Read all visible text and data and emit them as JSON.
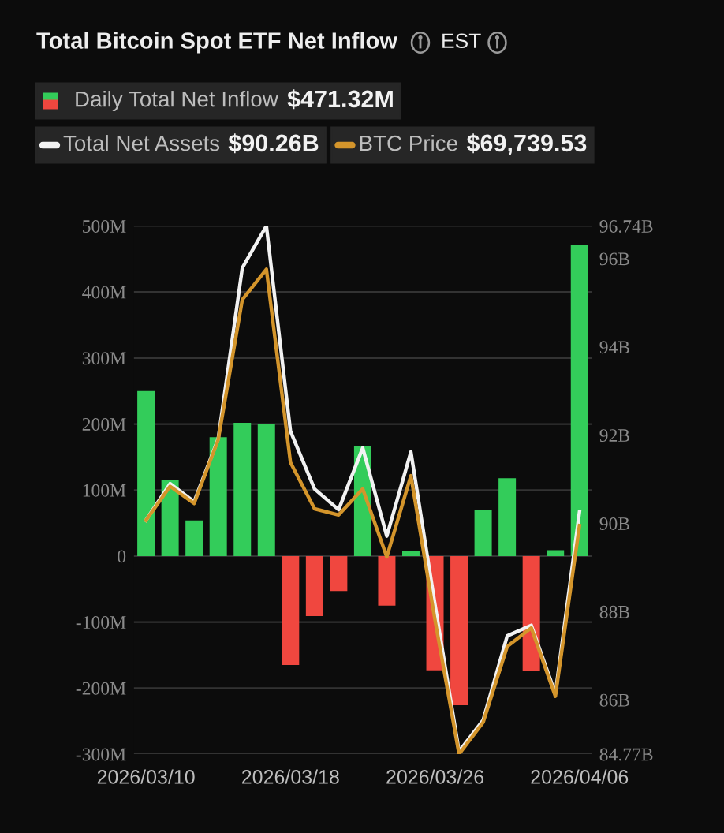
{
  "chart_data": {
    "type": "bar",
    "title": "Total Bitcoin Spot ETF Net Inflow",
    "categories": [
      "2026/03/10",
      null,
      null,
      null,
      null,
      null,
      "2026/03/18",
      null,
      null,
      null,
      null,
      null,
      "2026/03/26",
      null,
      null,
      null,
      null,
      null,
      "2026/04/06"
    ],
    "series": [
      {
        "name": "Daily Total Net Inflow",
        "colors": [
          "#33cc5a",
          "#33cc5a",
          "#33cc5a",
          "#33cc5a",
          "#33cc5a",
          "#33cc5a",
          "#f0473f",
          "#f0473f",
          "#f0473f",
          "#33cc5a",
          "#f0473f",
          "#33cc5a",
          "#f0473f",
          "#f0473f",
          "#33cc5a",
          "#33cc5a",
          "#f0473f",
          "#33cc5a",
          "#33cc5a"
        ],
        "values": [
          250,
          115,
          54,
          180,
          202,
          200,
          -165,
          -91,
          -53,
          167,
          -75,
          7,
          -173,
          -226,
          70,
          118,
          -174,
          9,
          471.32
        ]
      },
      {
        "name": "Total Net Assets",
        "type": "line",
        "axis": "y2",
        "color": "#f2f2f2",
        "values": [
          90.07,
          90.9,
          90.49,
          91.92,
          95.79,
          96.74,
          92.09,
          90.78,
          90.31,
          91.71,
          89.71,
          91.62,
          88.16,
          84.83,
          85.54,
          87.45,
          87.69,
          86.14,
          90.26
        ]
      },
      {
        "name": "BTC Price",
        "type": "line",
        "axis": "y2",
        "color": "#d4952b",
        "values": [
          90.07,
          90.84,
          90.45,
          91.9,
          95.07,
          95.76,
          91.38,
          90.33,
          90.19,
          90.78,
          89.24,
          91.08,
          87.81,
          84.77,
          85.49,
          87.21,
          87.63,
          86.08,
          89.95
        ]
      }
    ],
    "ylim": [
      -300,
      500
    ],
    "yticks": [
      {
        "value": -300,
        "label": "-300M"
      },
      {
        "value": -200,
        "label": "-200M"
      },
      {
        "value": -100,
        "label": "-100M"
      },
      0,
      {
        "value": 100,
        "label": "100M"
      },
      {
        "value": 200,
        "label": "200M"
      },
      {
        "value": 300,
        "label": "300M"
      },
      {
        "value": 400,
        "label": "400M"
      },
      {
        "value": 500,
        "label": "500M"
      }
    ],
    "y2lim": [
      84.77,
      96.74
    ],
    "y2ticks": [
      {
        "value": 84.77,
        "label": "84.77B"
      },
      {
        "value": 86,
        "label": "86B"
      },
      {
        "value": 88,
        "label": "88B"
      },
      {
        "value": 90,
        "label": "90B"
      },
      {
        "value": 92,
        "label": "92B"
      },
      {
        "value": 94,
        "label": "94B"
      },
      {
        "value": 96,
        "label": "96B"
      },
      {
        "value": 96.74,
        "label": "96.74B"
      }
    ],
    "grid": "y",
    "legend": "top",
    "annotations": [
      "EST",
      "$471.32M",
      "$90.26B",
      "$69,739.53"
    ]
  }
}
